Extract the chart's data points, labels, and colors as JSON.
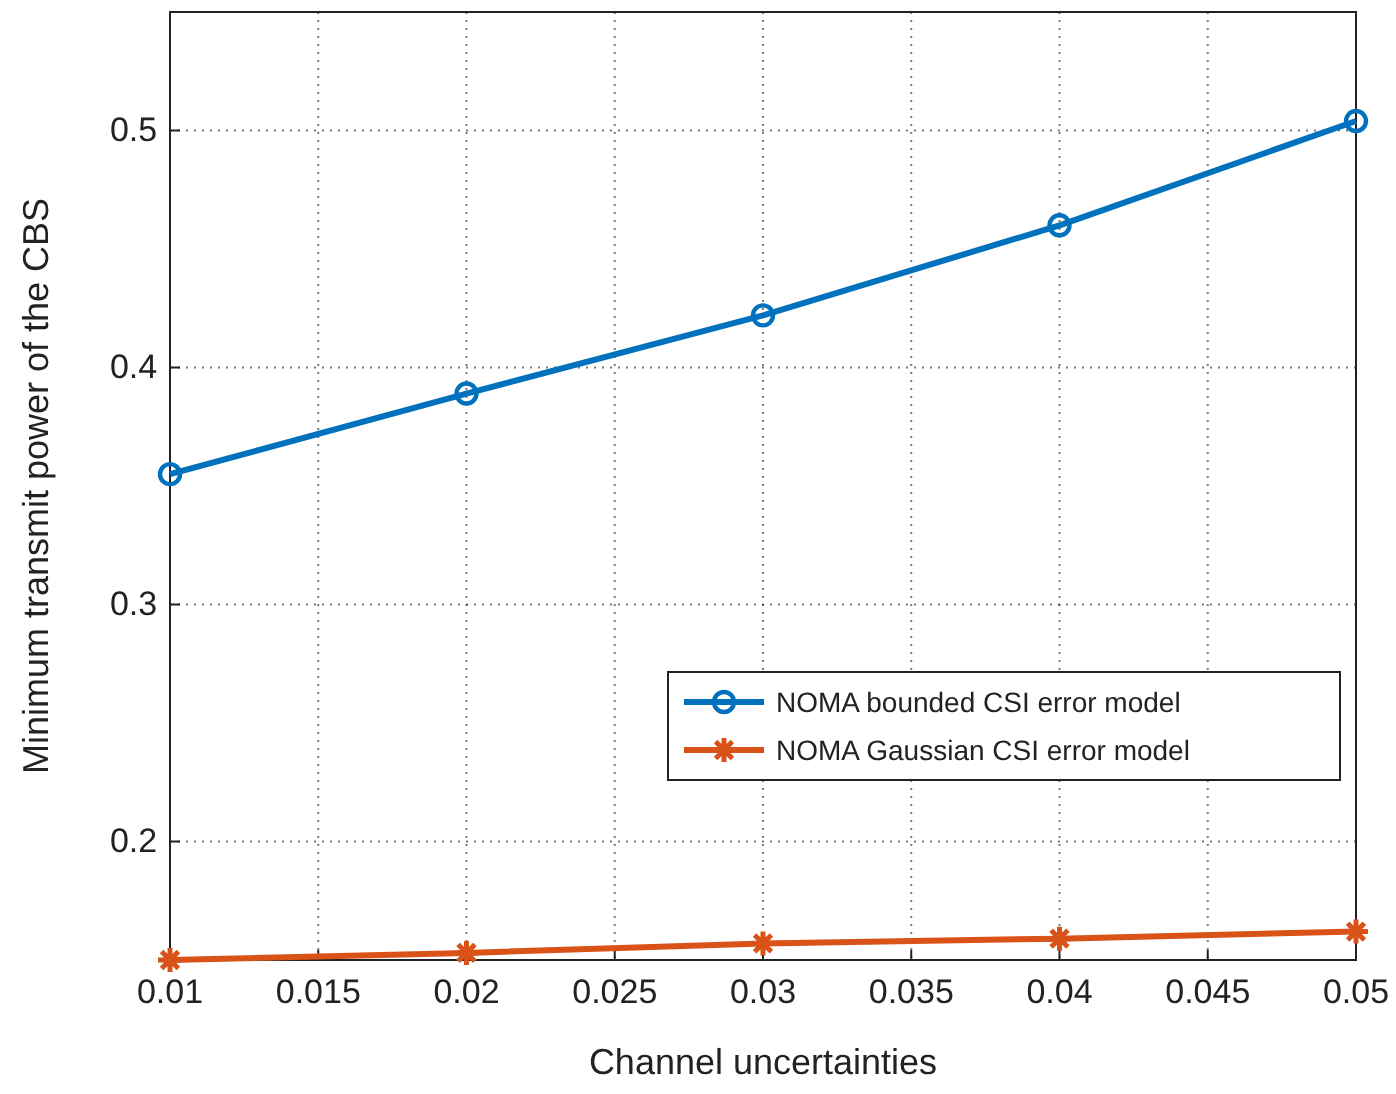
{
  "chart_data": {
    "type": "line",
    "xlabel": "Channel uncertainties",
    "ylabel": "Minimum transmit power of the CBS",
    "x": [
      0.01,
      0.02,
      0.03,
      0.04,
      0.05
    ],
    "series": [
      {
        "name": "NOMA bounded CSI error model",
        "color": "#0072bd",
        "marker": "circle",
        "values": [
          0.355,
          0.389,
          0.422,
          0.46,
          0.504
        ]
      },
      {
        "name": "NOMA Gaussian CSI error model",
        "color": "#d95319",
        "marker": "cross",
        "values": [
          0.15,
          0.153,
          0.157,
          0.159,
          0.162
        ]
      }
    ],
    "xlim": [
      0.01,
      0.05
    ],
    "xticks": [
      0.01,
      0.015,
      0.02,
      0.025,
      0.03,
      0.035,
      0.04,
      0.045,
      0.05
    ],
    "ylim": [
      0.15,
      0.55
    ],
    "yticks": [
      0.2,
      0.3,
      0.4,
      0.5
    ],
    "grid": true,
    "legend": "bottom right",
    "line_style": "solid"
  }
}
